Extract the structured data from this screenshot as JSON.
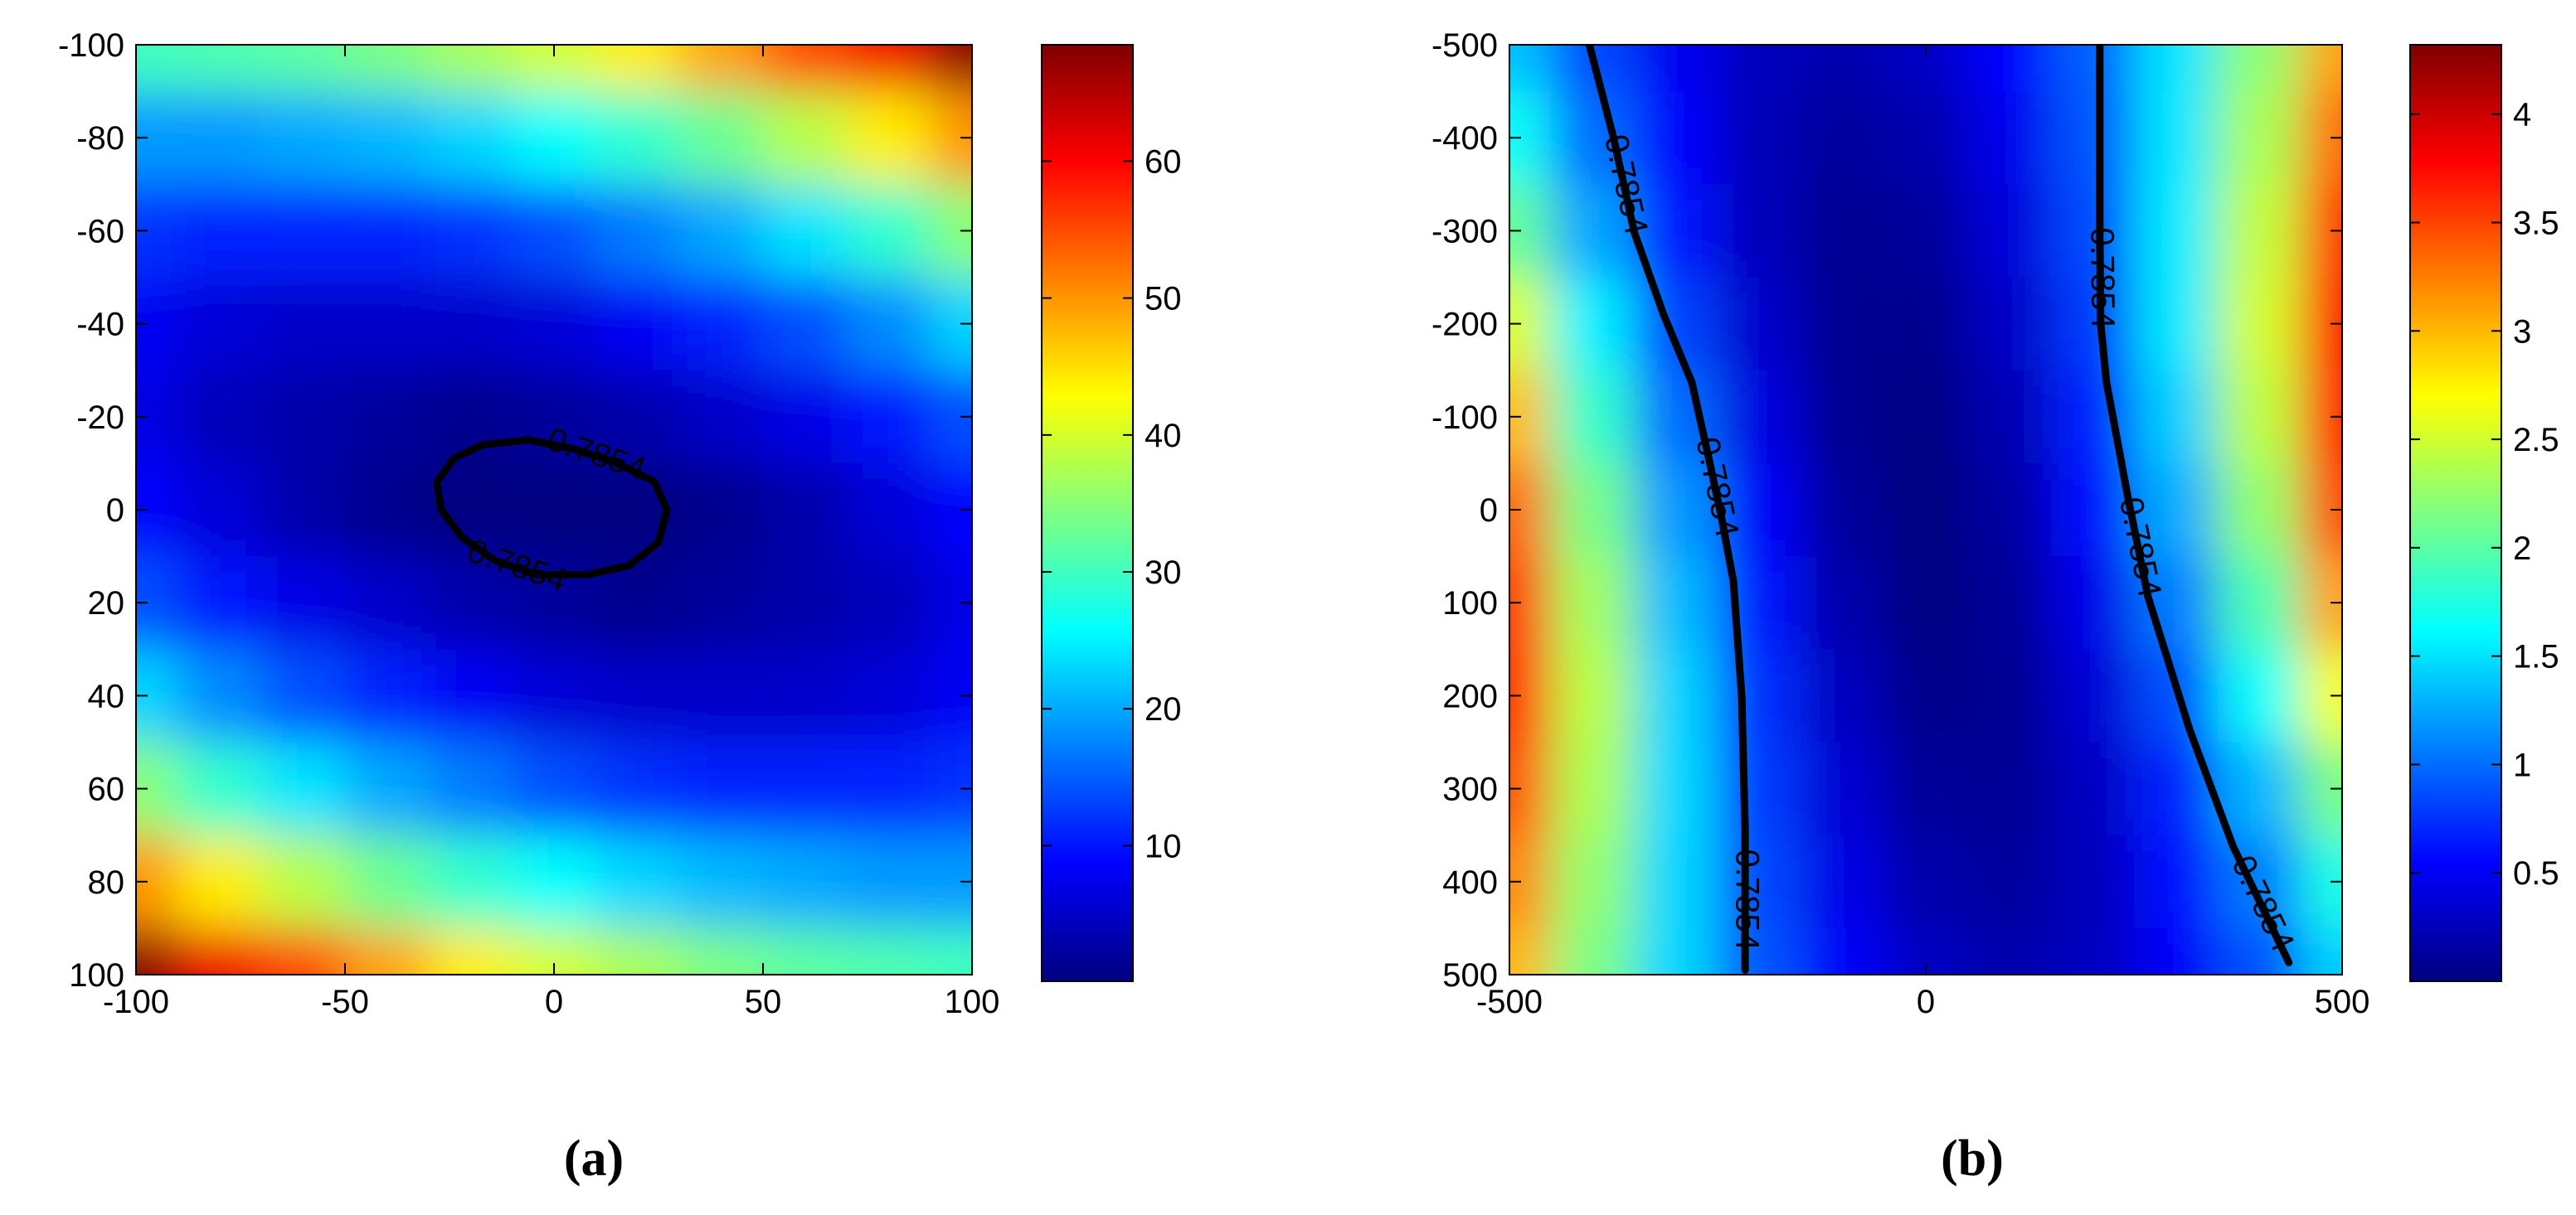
{
  "chart_data": [
    {
      "type": "heatmap",
      "caption": "(a)",
      "colormap": "jet",
      "x": [
        -100,
        -80,
        -60,
        -40,
        -20,
        0,
        20,
        40,
        60,
        80,
        100
      ],
      "y": [
        -100,
        -80,
        -60,
        -40,
        -20,
        0,
        20,
        40,
        60,
        80,
        100
      ],
      "z": [
        [
          30,
          31,
          32,
          34,
          37,
          40,
          44,
          49,
          55,
          61,
          68
        ],
        [
          19,
          19,
          20,
          21,
          23,
          26,
          29,
          33,
          38,
          44,
          50
        ],
        [
          12,
          11,
          11,
          11,
          12,
          14,
          17,
          20,
          24,
          29,
          35
        ],
        [
          8,
          6,
          5,
          5,
          5,
          6,
          8,
          11,
          14,
          18,
          23
        ],
        [
          7,
          4,
          3,
          2,
          1,
          2,
          3,
          5,
          7,
          10,
          14
        ],
        [
          9,
          6,
          3,
          1,
          0,
          0,
          0,
          1,
          3,
          6,
          9
        ],
        [
          14,
          10,
          7,
          5,
          3,
          2,
          1,
          2,
          3,
          4,
          7
        ],
        [
          23,
          18,
          14,
          11,
          8,
          6,
          5,
          5,
          5,
          6,
          8
        ],
        [
          35,
          29,
          24,
          20,
          17,
          14,
          12,
          11,
          11,
          11,
          12
        ],
        [
          50,
          44,
          38,
          33,
          29,
          26,
          23,
          21,
          20,
          19,
          19
        ],
        [
          68,
          61,
          55,
          49,
          44,
          40,
          37,
          34,
          32,
          31,
          30
        ]
      ],
      "xlim": [
        -100,
        100
      ],
      "ylim": [
        -100,
        100
      ],
      "y_reversed": true,
      "xticks": [
        -100,
        -50,
        0,
        50,
        100
      ],
      "yticks": [
        -100,
        -80,
        -60,
        -40,
        -20,
        0,
        20,
        40,
        60,
        80,
        100
      ],
      "clim": [
        0.1,
        68.5
      ],
      "cticks": [
        10,
        20,
        30,
        40,
        50,
        60
      ],
      "contours": [
        {
          "level": 0.7854,
          "color": "#000000",
          "x": [
            -28,
            -24,
            -17,
            -6,
            5,
            15,
            24,
            27,
            25,
            18,
            8,
            -4,
            -14,
            -22,
            -27,
            -28
          ],
          "y": [
            -6,
            -11,
            -14,
            -15,
            -13,
            -10,
            -6,
            0,
            7,
            12,
            14,
            14,
            11,
            6,
            0,
            -6
          ]
        }
      ]
    },
    {
      "type": "heatmap",
      "caption": "(b)",
      "colormap": "jet",
      "x": [
        -500,
        -400,
        -300,
        -200,
        -100,
        0,
        100,
        200,
        300,
        400,
        500
      ],
      "y": [
        -500,
        -400,
        -300,
        -200,
        -100,
        0,
        100,
        200,
        300,
        400,
        500
      ],
      "z": [
        [
          1.36,
          0.84,
          0.47,
          0.26,
          0.2,
          0.3,
          0.55,
          0.95,
          1.51,
          2.22,
          3.09
        ],
        [
          1.66,
          1.0,
          0.53,
          0.24,
          0.13,
          0.2,
          0.46,
          0.9,
          1.52,
          2.33,
          3.32
        ],
        [
          2.06,
          1.24,
          0.64,
          0.25,
          0.08,
          0.12,
          0.38,
          0.85,
          1.54,
          2.44,
          3.55
        ],
        [
          2.55,
          1.56,
          0.82,
          0.32,
          0.07,
          0.06,
          0.3,
          0.79,
          1.53,
          2.51,
          3.73
        ],
        [
          2.98,
          1.85,
          1.0,
          0.41,
          0.08,
          0.02,
          0.22,
          0.69,
          1.42,
          2.42,
          3.68
        ],
        [
          3.34,
          2.13,
          1.19,
          0.52,
          0.12,
          0.0,
          0.15,
          0.57,
          1.27,
          2.24,
          3.48
        ],
        [
          3.54,
          2.3,
          1.33,
          0.63,
          0.19,
          0.01,
          0.1,
          0.45,
          1.07,
          1.95,
          3.1
        ],
        [
          3.6,
          2.4,
          1.44,
          0.73,
          0.27,
          0.05,
          0.08,
          0.36,
          0.88,
          1.65,
          2.66
        ],
        [
          3.43,
          2.34,
          1.46,
          0.79,
          0.35,
          0.11,
          0.09,
          0.28,
          0.69,
          1.32,
          2.15
        ],
        [
          3.21,
          2.24,
          1.45,
          0.85,
          0.43,
          0.19,
          0.13,
          0.26,
          0.57,
          1.06,
          1.73
        ],
        [
          3.0,
          2.14,
          1.45,
          0.9,
          0.52,
          0.28,
          0.2,
          0.27,
          0.5,
          0.88,
          1.42
        ]
      ],
      "xlim": [
        -500,
        500
      ],
      "ylim": [
        -500,
        500
      ],
      "y_reversed": true,
      "xticks": [
        -500,
        0,
        500
      ],
      "yticks": [
        -500,
        -400,
        -300,
        -200,
        -100,
        0,
        100,
        200,
        300,
        400,
        500
      ],
      "clim": [
        0,
        4.32
      ],
      "cticks": [
        0.5,
        1,
        1.5,
        2,
        2.5,
        3,
        3.5,
        4
      ],
      "contours": [
        {
          "level": 0.7854,
          "color": "#000000",
          "x": [
            -404,
            -375,
            -350,
            -315,
            -281,
            -261,
            -245,
            -231,
            -221,
            -217,
            -217
          ],
          "y": [
            -500,
            -400,
            -298,
            -210,
            -137,
            -57,
            10,
            77,
            201,
            344,
            495
          ]
        },
        {
          "level": 0.7854,
          "color": "#000000",
          "x": [
            209,
            209,
            210,
            217,
            243,
            267,
            317,
            369,
            436
          ],
          "y": [
            -500,
            -298,
            -200,
            -137,
            -12,
            94,
            237,
            362,
            487
          ]
        }
      ]
    }
  ]
}
